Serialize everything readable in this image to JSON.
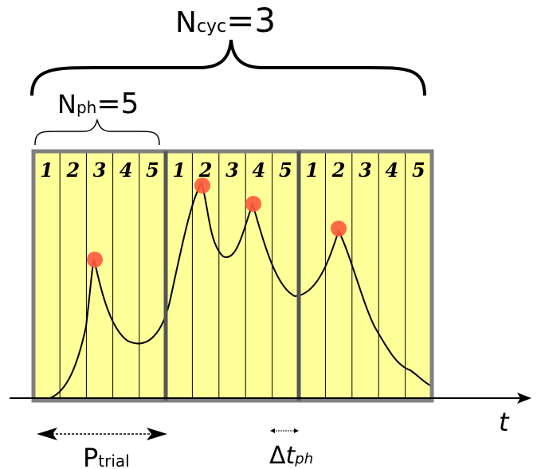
{
  "labels": {
    "ncyc_main": "N",
    "ncyc_sub": "cyc",
    "ncyc_value": "=3",
    "nph_main": "N",
    "nph_sub": "ph",
    "nph_value": "=5",
    "ptrial_main": "P",
    "ptrial_sub": "trial",
    "dtph_delta": "Δ",
    "dtph_t": "t",
    "dtph_sub": "ph",
    "time_axis": "t"
  },
  "phase_numbers": [
    "1",
    "2",
    "3",
    "4",
    "5",
    "1",
    "2",
    "3",
    "4",
    "5",
    "1",
    "2",
    "3",
    "4",
    "5"
  ],
  "colors": {
    "cell_fill": "#ffff99",
    "frame": "#808080",
    "cycle_divider": "#555555",
    "peak_marker": "#ff5a3c",
    "line": "#000000"
  }
}
